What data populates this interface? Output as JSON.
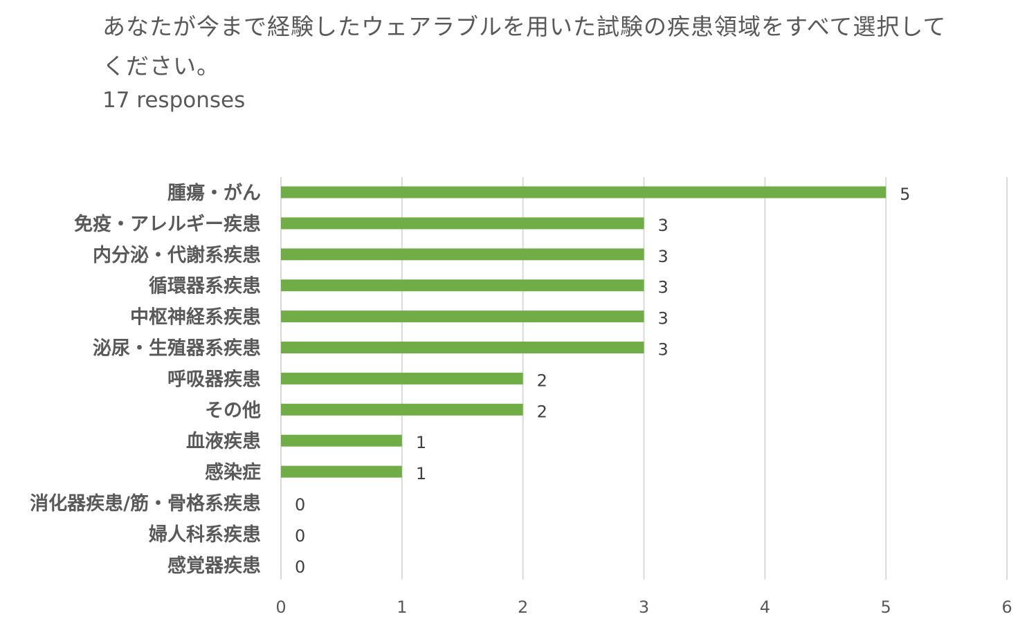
{
  "header": {
    "question": "あなたが今まで経験したウェアラブルを用いた試験の疾患領域をすべて選択してください。",
    "responses": "17 responses"
  },
  "chart_data": {
    "type": "bar",
    "orientation": "horizontal",
    "categories": [
      "腫瘍・がん",
      "免疫・アレルギー疾患",
      "内分泌・代謝系疾患",
      "循環器系疾患",
      "中枢神経系疾患",
      "泌尿・生殖器系疾患",
      "呼吸器疾患",
      "その他",
      "血液疾患",
      "感染症",
      "消化器疾患/筋・骨格系疾患",
      "婦人科系疾患",
      "感覚器疾患"
    ],
    "values": [
      5,
      3,
      3,
      3,
      3,
      3,
      2,
      2,
      1,
      1,
      0,
      0,
      0
    ],
    "xlim": [
      0,
      6
    ],
    "xticks": [
      0,
      1,
      2,
      3,
      4,
      5,
      6
    ],
    "grid": "vertical",
    "bar_color": "#70AD47",
    "data_labels": true
  }
}
